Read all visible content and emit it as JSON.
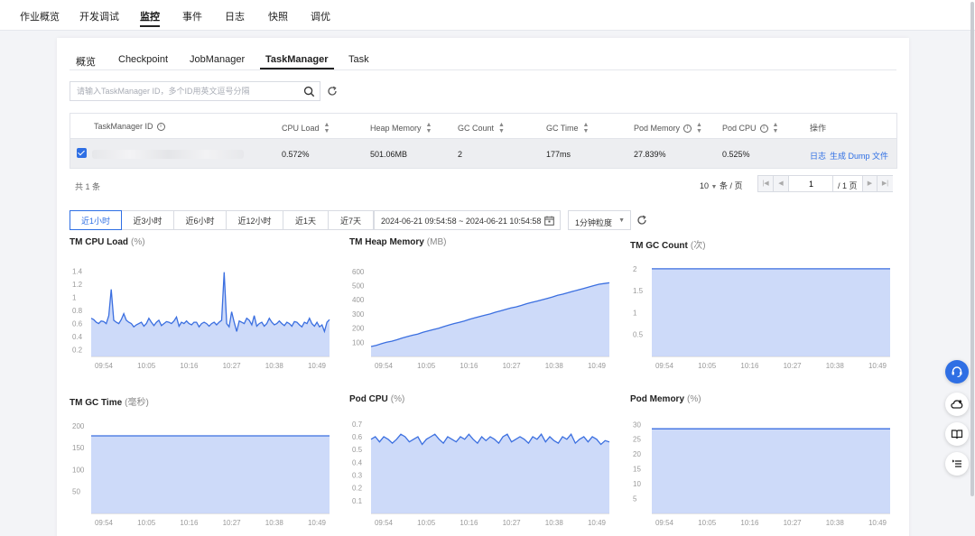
{
  "top_nav": [
    {
      "label": "作业概览",
      "active": false
    },
    {
      "label": "开发调试",
      "active": false
    },
    {
      "label": "监控",
      "active": true
    },
    {
      "label": "事件",
      "active": false
    },
    {
      "label": "日志",
      "active": false
    },
    {
      "label": "快照",
      "active": false
    },
    {
      "label": "调优",
      "active": false
    }
  ],
  "sub_tabs": [
    {
      "label": "概览",
      "active": false
    },
    {
      "label": "Checkpoint",
      "active": false
    },
    {
      "label": "JobManager",
      "active": false
    },
    {
      "label": "TaskManager",
      "active": true
    },
    {
      "label": "Task",
      "active": false
    }
  ],
  "search": {
    "placeholder": "请输入TaskManager ID，多个ID用英文逗号分隔",
    "value": ""
  },
  "table": {
    "columns": [
      "TaskManager ID",
      "CPU Load",
      "Heap Memory",
      "GC Count",
      "GC Time",
      "Pod Memory",
      "Pod CPU",
      "操作"
    ],
    "rows": [
      {
        "cpu_load": "0.572%",
        "heap_memory": "501.06MB",
        "gc_count": "2",
        "gc_time": "177ms",
        "pod_memory": "27.839%",
        "pod_cpu": "0.525%",
        "actions": [
          "日志",
          "生成 Dump 文件"
        ]
      }
    ]
  },
  "total_text": "共 1 条",
  "pagination": {
    "page_size": "10",
    "page_size_unit": "条 / 页",
    "current_page": "1",
    "total_pages_text": "/ 1 页"
  },
  "time_range": {
    "options": [
      "近1小时",
      "近3小时",
      "近6小时",
      "近12小时",
      "近1天",
      "近7天"
    ],
    "active_index": 0,
    "date_range": "2024-06-21 09:54:58  ~ 2024-06-21 10:54:58",
    "granularity": "1分钟粒度"
  },
  "colors": {
    "accent": "#2f6fe4",
    "line": "#3b6fe0",
    "area": "#c4d3f8"
  },
  "chart_data": [
    {
      "type": "area",
      "title": "TM CPU Load",
      "unit": "(%)",
      "x_ticks": [
        "09:54",
        "10:05",
        "10:16",
        "10:27",
        "10:38",
        "10:49"
      ],
      "y_ticks": [
        "1.4",
        "1.2",
        "1",
        "0.8",
        "0.6",
        "0.4",
        "0.2"
      ],
      "ylim": [
        0.1,
        1.5
      ],
      "values": [
        0.68,
        0.66,
        0.62,
        0.6,
        0.64,
        0.63,
        0.6,
        0.72,
        1.12,
        0.65,
        0.62,
        0.6,
        0.66,
        0.75,
        0.65,
        0.62,
        0.6,
        0.55,
        0.58,
        0.6,
        0.62,
        0.56,
        0.6,
        0.68,
        0.62,
        0.57,
        0.62,
        0.65,
        0.57,
        0.6,
        0.63,
        0.62,
        0.6,
        0.64,
        0.7,
        0.56,
        0.62,
        0.6,
        0.64,
        0.6,
        0.58,
        0.62,
        0.62,
        0.55,
        0.6,
        0.62,
        0.6,
        0.56,
        0.6,
        0.62,
        0.58,
        0.62,
        0.65,
        1.38,
        0.6,
        0.55,
        0.78,
        0.62,
        0.48,
        0.64,
        0.62,
        0.6,
        0.68,
        0.65,
        0.58,
        0.72,
        0.56,
        0.6,
        0.62,
        0.56,
        0.6,
        0.68,
        0.62,
        0.58,
        0.6,
        0.64,
        0.6,
        0.57,
        0.62,
        0.6,
        0.56,
        0.63,
        0.62,
        0.58,
        0.55,
        0.62,
        0.6,
        0.68,
        0.6,
        0.56,
        0.62,
        0.55,
        0.58,
        0.48,
        0.62,
        0.66
      ]
    },
    {
      "type": "area",
      "title": "TM Heap Memory",
      "unit": "(MB)",
      "x_ticks": [
        "09:54",
        "10:05",
        "10:16",
        "10:27",
        "10:38",
        "10:49"
      ],
      "y_ticks": [
        "600",
        "500",
        "400",
        "300",
        "200",
        "100"
      ],
      "ylim": [
        0,
        650
      ],
      "values": [
        70,
        78,
        90,
        100,
        108,
        118,
        130,
        140,
        150,
        158,
        170,
        180,
        190,
        198,
        210,
        222,
        232,
        240,
        250,
        262,
        272,
        282,
        292,
        300,
        312,
        322,
        332,
        342,
        350,
        360,
        372,
        382,
        390,
        400,
        410,
        420,
        432,
        440,
        450,
        460,
        470,
        480,
        490,
        500,
        510,
        515,
        520
      ]
    },
    {
      "type": "area",
      "title": "TM GC Count",
      "unit": "(次)",
      "x_ticks": [
        "09:54",
        "10:05",
        "10:16",
        "10:27",
        "10:38",
        "10:49"
      ],
      "y_ticks": [
        "2",
        "1.5",
        "1",
        "0.5"
      ],
      "ylim": [
        0,
        2.1
      ],
      "values": [
        2,
        2
      ]
    },
    {
      "type": "area",
      "title": "TM GC Time",
      "unit": "(毫秒)",
      "x_ticks": [
        "09:54",
        "10:05",
        "10:16",
        "10:27",
        "10:38",
        "10:49"
      ],
      "y_ticks": [
        "200",
        "150",
        "100",
        "50"
      ],
      "ylim": [
        0,
        210
      ],
      "values": [
        177,
        177
      ]
    },
    {
      "type": "area",
      "title": "Pod CPU",
      "unit": "(%)",
      "x_ticks": [
        "09:54",
        "10:05",
        "10:16",
        "10:27",
        "10:38",
        "10:49"
      ],
      "y_ticks": [
        "0.7",
        "0.6",
        "0.5",
        "0.4",
        "0.3",
        "0.2",
        "0.1"
      ],
      "ylim": [
        0,
        0.72
      ],
      "values": [
        0.58,
        0.6,
        0.56,
        0.6,
        0.58,
        0.55,
        0.58,
        0.62,
        0.6,
        0.56,
        0.58,
        0.6,
        0.54,
        0.58,
        0.6,
        0.62,
        0.58,
        0.55,
        0.6,
        0.58,
        0.56,
        0.6,
        0.58,
        0.62,
        0.58,
        0.55,
        0.6,
        0.57,
        0.6,
        0.58,
        0.55,
        0.6,
        0.62,
        0.56,
        0.58,
        0.6,
        0.58,
        0.55,
        0.6,
        0.58,
        0.62,
        0.56,
        0.6,
        0.57,
        0.55,
        0.6,
        0.58,
        0.62,
        0.55,
        0.58,
        0.6,
        0.56,
        0.6,
        0.58,
        0.54,
        0.57,
        0.56
      ]
    },
    {
      "type": "area",
      "title": "Pod Memory",
      "unit": "(%)",
      "x_ticks": [
        "09:54",
        "10:05",
        "10:16",
        "10:27",
        "10:38",
        "10:49"
      ],
      "y_ticks": [
        "30",
        "25",
        "20",
        "15",
        "10",
        "5"
      ],
      "ylim": [
        0,
        31
      ],
      "values": [
        28.5,
        28.5
      ]
    }
  ],
  "floating_icons": [
    "headset-icon",
    "cloud-icon",
    "book-icon",
    "list-icon"
  ]
}
